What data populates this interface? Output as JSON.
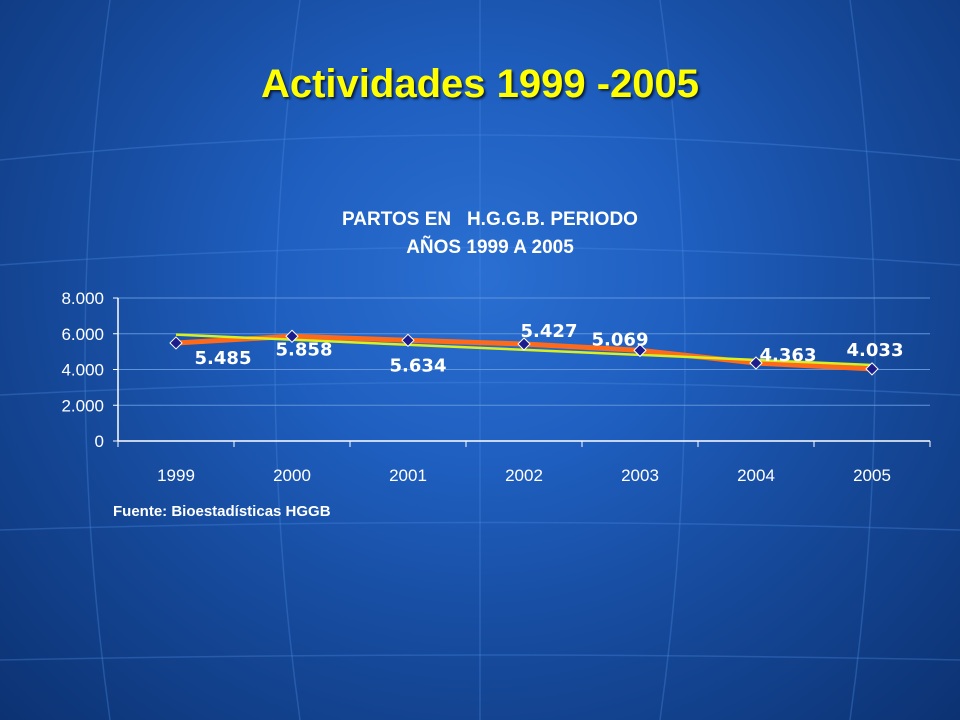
{
  "slide": {
    "title": "Actividades 1999 -2005",
    "source": "Fuente: Bioestadísticas HGGB"
  },
  "colors": {
    "background": "#1f5fc0",
    "title": "#ffff00",
    "series_line": "#ff6a1a",
    "trend_line": "#d8f020",
    "marker_fill": "#1c1c8c",
    "text": "#ffffff"
  },
  "chart_data": {
    "type": "line",
    "title_lines": [
      "PARTOS EN   H.G.G.B. PERIODO",
      "AÑOS 1999 A 2005"
    ],
    "categories": [
      "1999",
      "2000",
      "2001",
      "2002",
      "2003",
      "2004",
      "2005"
    ],
    "values": [
      5485,
      5858,
      5634,
      5427,
      5069,
      4363,
      4033
    ],
    "data_labels": [
      "5.485",
      "5.858",
      "5.634",
      "5.427",
      "5.069",
      "4.363",
      "4.033"
    ],
    "trendline": {
      "type": "linear",
      "start": 5950,
      "end": 4250
    },
    "ylim": [
      0,
      8000
    ],
    "yticks": [
      0,
      2000,
      4000,
      6000,
      8000
    ],
    "ytick_labels": [
      "0",
      "2.000",
      "4.000",
      "6.000",
      "8.000"
    ],
    "grid": true,
    "legend": "none"
  }
}
